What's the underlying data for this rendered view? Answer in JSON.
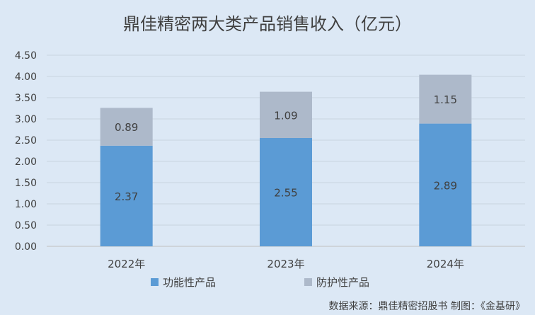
{
  "chart_data": {
    "type": "bar",
    "stacked": true,
    "title": "鼎佳精密两大类产品销售收入（亿元）",
    "categories": [
      "2022年",
      "2023年",
      "2024年"
    ],
    "series": [
      {
        "name": "功能性产品",
        "values": [
          2.37,
          2.55,
          2.89
        ],
        "labels": [
          "2.37",
          "2.55",
          "2.89"
        ],
        "color": "#5b9bd5"
      },
      {
        "name": "防护性产品",
        "values": [
          0.89,
          1.09,
          1.15
        ],
        "labels": [
          "0.89",
          "1.09",
          "1.15"
        ],
        "color": "#adb9ca"
      }
    ],
    "ylim": [
      0,
      4.5
    ],
    "yticks": [
      "0.00",
      "0.50",
      "1.00",
      "1.50",
      "2.00",
      "2.50",
      "3.00",
      "3.50",
      "4.00",
      "4.50"
    ],
    "grid": true,
    "legend_position": "bottom",
    "source": "数据来源：鼎佳精密招股书   制图：《金基研》"
  }
}
